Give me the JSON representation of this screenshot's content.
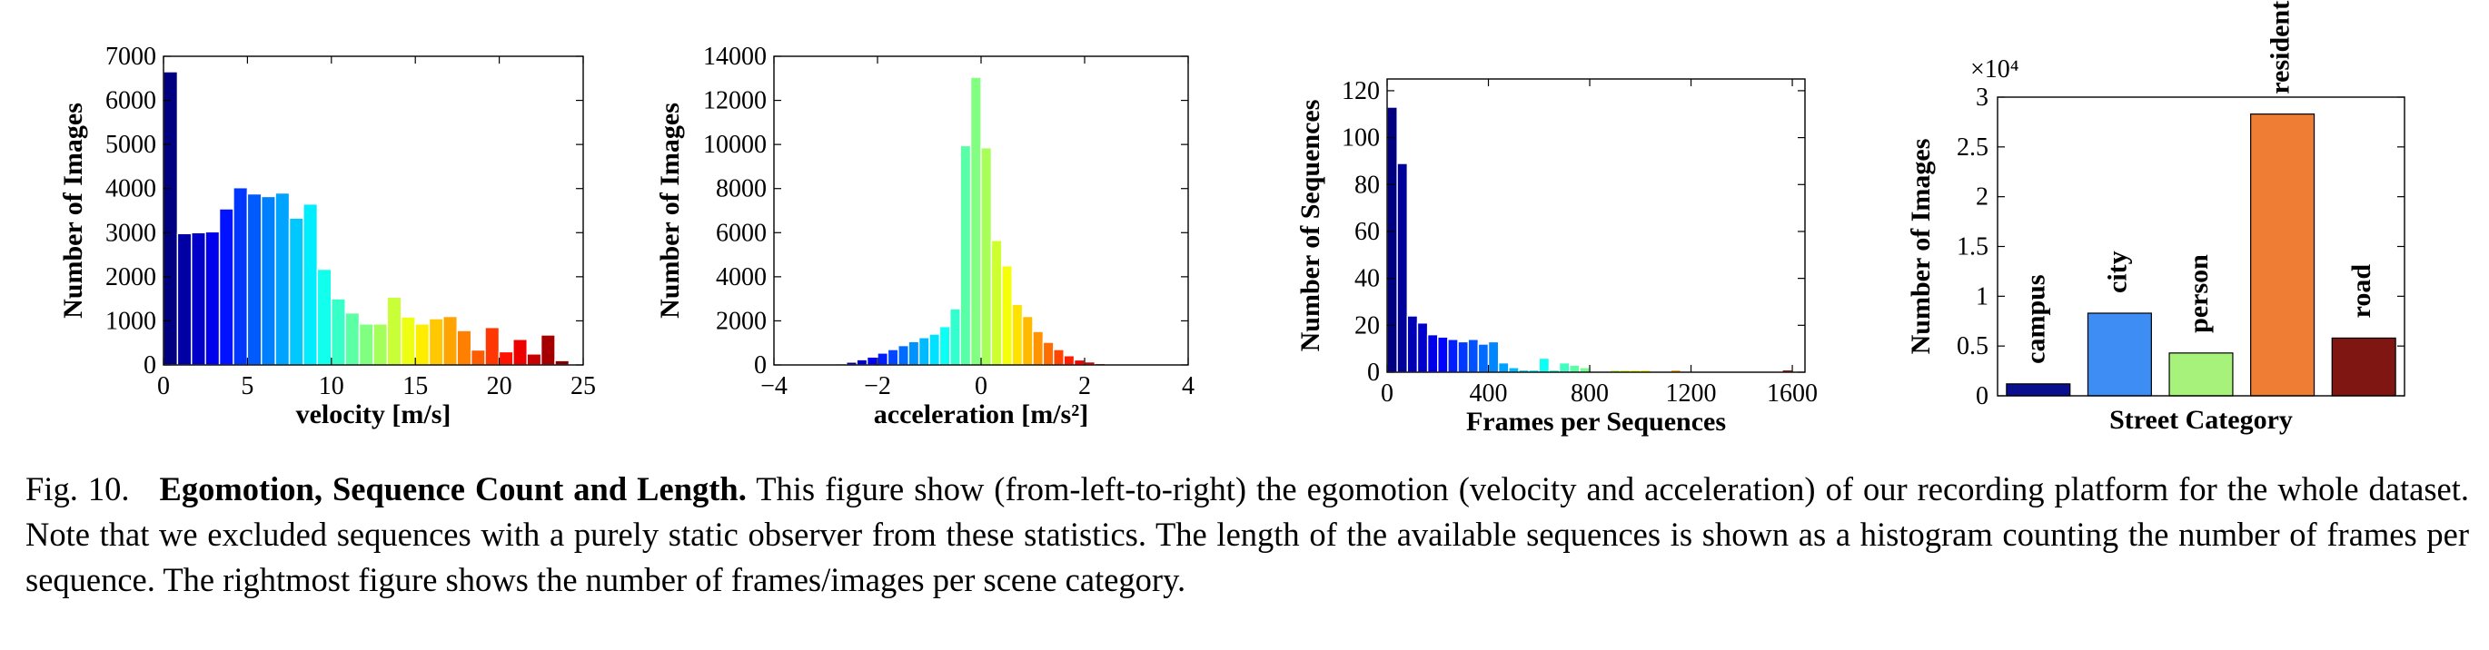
{
  "chart_data": [
    {
      "type": "bar",
      "xlabel": "velocity [m/s]",
      "ylabel": "Number of Images",
      "xlim": [
        0,
        25
      ],
      "ylim": [
        0,
        7000
      ],
      "xticks": [
        0,
        5,
        10,
        15,
        20,
        25
      ],
      "yticks": [
        0,
        1000,
        2000,
        3000,
        4000,
        5000,
        6000,
        7000
      ],
      "bin_start": 0,
      "bin_width": 0.833,
      "values": [
        6650,
        2980,
        3000,
        3020,
        3540,
        4020,
        3880,
        3820,
        3900,
        3330,
        3650,
        2170,
        1500,
        1180,
        930,
        930,
        1540,
        1090,
        930,
        1050,
        1100,
        780,
        340,
        850,
        300,
        580,
        250,
        680,
        100
      ],
      "grid": false
    },
    {
      "type": "bar",
      "xlabel": "acceleration [m/s²]",
      "ylabel": "Number of Images",
      "xlim": [
        -4,
        4
      ],
      "ylim": [
        0,
        14000
      ],
      "xticks": [
        -4,
        -2,
        0,
        2,
        4
      ],
      "yticks": [
        0,
        2000,
        4000,
        6000,
        8000,
        10000,
        12000,
        14000
      ],
      "bin_start": -2.8,
      "bin_width": 0.2,
      "values": [
        60,
        130,
        240,
        360,
        540,
        700,
        880,
        1060,
        1240,
        1400,
        1740,
        2550,
        9950,
        13050,
        9850,
        5650,
        4500,
        2750,
        2200,
        1520,
        1030,
        700,
        420,
        230,
        140,
        70,
        40
      ],
      "grid": false
    },
    {
      "type": "bar",
      "xlabel": "Frames per Sequences",
      "ylabel": "Number of Sequences",
      "xlim": [
        0,
        1650
      ],
      "ylim": [
        0,
        125
      ],
      "xticks": [
        0,
        400,
        800,
        1200,
        1600
      ],
      "yticks": [
        0,
        20,
        40,
        60,
        80,
        100,
        120
      ],
      "bin_start": 0,
      "bin_width": 40,
      "values": [
        113,
        89,
        24,
        21,
        16,
        15,
        14,
        13,
        14,
        12,
        13,
        4,
        2,
        1,
        1,
        6,
        1,
        4,
        3,
        2,
        0,
        0,
        1,
        1,
        1,
        1,
        0,
        0,
        1,
        0,
        0,
        0,
        0,
        0,
        0,
        0,
        0,
        0,
        0,
        1
      ],
      "grid": false
    },
    {
      "type": "bar",
      "xlabel": "Street Category",
      "ylabel": "Number of Images",
      "multiplier": "×10⁴",
      "ylim": [
        0,
        3
      ],
      "yticks": [
        "0",
        "0.5",
        "1",
        "1.5",
        "2",
        "2.5",
        "3"
      ],
      "categories": [
        "campus",
        "city",
        "person",
        "residential",
        "road"
      ],
      "values": [
        0.12,
        0.83,
        0.43,
        2.83,
        0.58
      ],
      "colors": [
        "#0a0f8f",
        "#3d8df5",
        "#a6f27a",
        "#ef7d33",
        "#7f1612"
      ],
      "grid": false
    }
  ],
  "caption": {
    "label": "Fig. 10.",
    "title": "Egomotion, Sequence Count and Length.",
    "text": "This figure show (from-left-to-right) the egomotion (velocity and acceleration) of our recording platform for the whole dataset. Note that we excluded sequences with a purely static observer from these statistics. The length of the available sequences is shown as a histogram counting the number of frames per sequence. The rightmost figure shows the number of frames/images per scene category."
  }
}
